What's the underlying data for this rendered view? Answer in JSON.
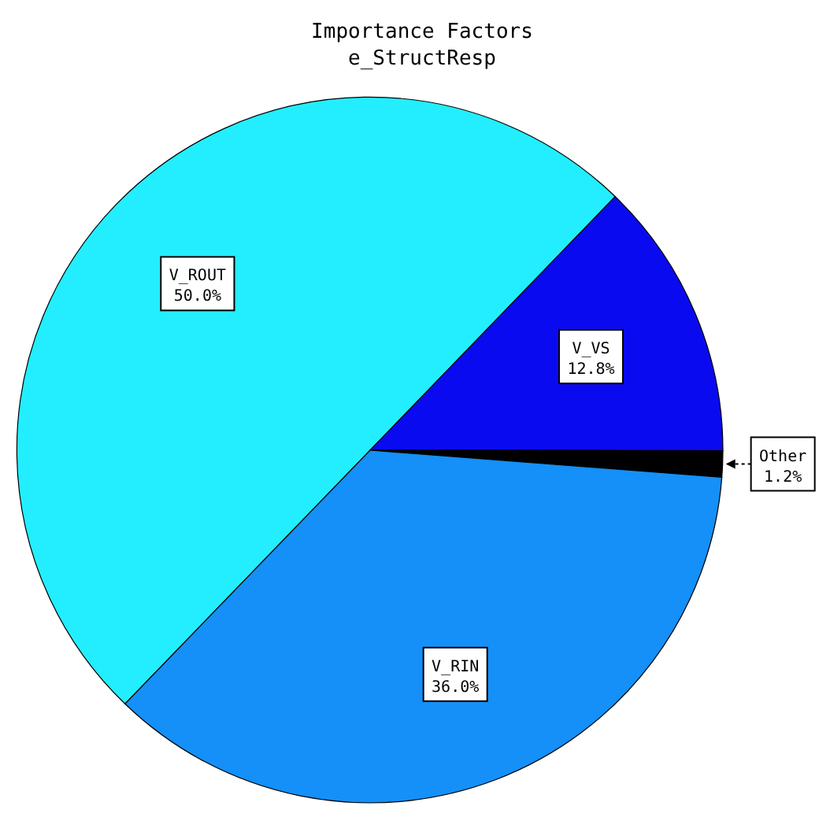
{
  "chart_data": {
    "type": "pie",
    "title": "Importance Factors",
    "subtitle": "e_StructResp",
    "categories": [
      "V_ROUT",
      "V_VS",
      "Other",
      "V_RIN"
    ],
    "values": [
      50.0,
      12.8,
      1.2,
      36.0
    ],
    "value_labels": [
      "50.0%",
      "12.8%",
      "1.2%",
      "36.0%"
    ],
    "colors": [
      "#22eeff",
      "#0a0af0",
      "#000000",
      "#1490f8"
    ]
  }
}
